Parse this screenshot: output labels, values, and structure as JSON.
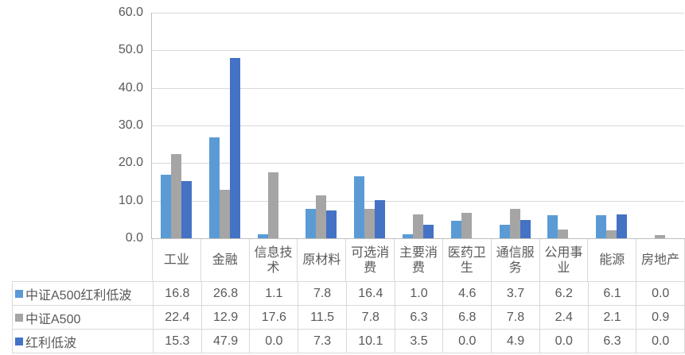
{
  "chart_data": {
    "type": "bar",
    "title": "",
    "xlabel": "",
    "ylabel": "",
    "categories": [
      "工业",
      "金融",
      "信息技术",
      "原材料",
      "可选消费",
      "主要消费",
      "医药卫生",
      "通信服务",
      "公用事业",
      "能源",
      "房地产"
    ],
    "category_display": [
      "工业",
      "金融",
      "信息技\n术",
      "原材料",
      "可选消\n费",
      "主要消\n费",
      "医药卫\n生",
      "通信服\n务",
      "公用事\n业",
      "能源",
      "房地产"
    ],
    "series": [
      {
        "name": "中证A500红利低波",
        "color": "#5b9bd5",
        "values": [
          16.8,
          26.8,
          1.1,
          7.8,
          16.4,
          1.0,
          4.6,
          3.7,
          6.2,
          6.1,
          0.0
        ]
      },
      {
        "name": "中证A500",
        "color": "#a5a5a5",
        "values": [
          22.4,
          12.9,
          17.6,
          11.5,
          7.8,
          6.3,
          6.8,
          7.8,
          2.4,
          2.1,
          0.9
        ]
      },
      {
        "name": "红利低波",
        "color": "#4472c4",
        "values": [
          15.3,
          47.9,
          0.0,
          7.3,
          10.1,
          3.5,
          0.0,
          4.9,
          0.0,
          6.3,
          0.0
        ]
      }
    ],
    "y_axis": {
      "min": 0,
      "max": 60,
      "step": 10,
      "tick_labels": [
        "60.0",
        "50.0",
        "40.0",
        "30.0",
        "20.0",
        "10.0",
        "0.0"
      ]
    },
    "grid": true,
    "legend_position": "data-table-left",
    "value_decimals": 1,
    "colors": {
      "gridline": "#d9d9d9",
      "axis_line": "#bfbfbf",
      "table_border": "#d9d9d9",
      "text": "#595959",
      "background": "#ffffff"
    }
  }
}
